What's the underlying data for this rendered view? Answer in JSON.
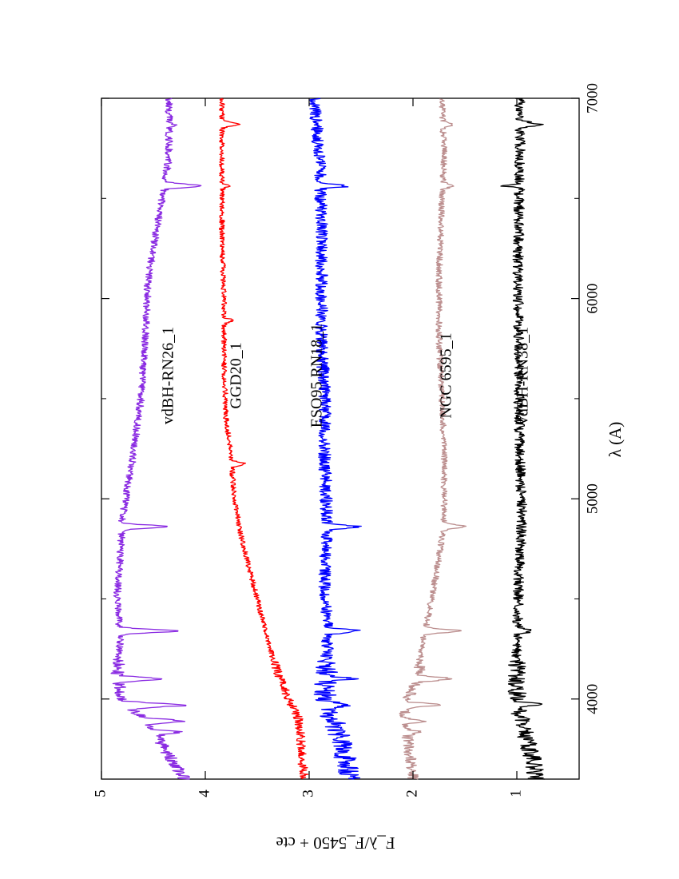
{
  "chart_data": {
    "type": "line",
    "title": "",
    "xlabel": "λ (A)",
    "ylabel": "F_λ/F_5450 + cte",
    "xlim": [
      3600,
      7000
    ],
    "ylim": [
      0.4,
      5
    ],
    "xticks": [
      {
        "value": 4000,
        "label": "4000"
      },
      {
        "value": 5000,
        "label": "5000"
      },
      {
        "value": 6000,
        "label": "6000"
      },
      {
        "value": 7000,
        "label": "7000"
      }
    ],
    "xminor": [
      4500,
      5500,
      6500
    ],
    "yticks": [
      {
        "value": 1,
        "label": "1"
      },
      {
        "value": 2,
        "label": "2"
      },
      {
        "value": 3,
        "label": "3"
      },
      {
        "value": 4,
        "label": "4"
      },
      {
        "value": 5,
        "label": "5"
      }
    ],
    "grid": false,
    "orientation": "rotated 90° (page landscape)",
    "series": [
      {
        "name": "vdBH-RN26_1",
        "color": "#8a2be2",
        "noise": 0.035,
        "x": [
          3600,
          3800,
          3900,
          4000,
          4100,
          4300,
          4500,
          4700,
          4900,
          5200,
          5500,
          5800,
          6100,
          6400,
          6700,
          7000
        ],
        "y": [
          4.2,
          4.45,
          4.6,
          4.8,
          4.85,
          4.82,
          4.85,
          4.82,
          4.8,
          4.7,
          4.62,
          4.58,
          4.55,
          4.45,
          4.35,
          4.35
        ],
        "absorptions": [
          [
            3835,
            0.25
          ],
          [
            3890,
            0.35
          ],
          [
            3970,
            0.55
          ],
          [
            4101,
            0.4
          ],
          [
            4340,
            0.55
          ],
          [
            4861,
            0.45
          ],
          [
            6563,
            0.35
          ],
          [
            6870,
            0.05
          ]
        ]
      },
      {
        "name": "GGD20_1",
        "color": "#ff0000",
        "noise": 0.025,
        "x": [
          3600,
          3800,
          3900,
          4000,
          4200,
          4400,
          4600,
          4800,
          5000,
          5200,
          5400,
          5700,
          6000,
          6300,
          6600,
          6900,
          7000
        ],
        "y": [
          3.05,
          3.08,
          3.1,
          3.2,
          3.35,
          3.45,
          3.55,
          3.65,
          3.72,
          3.75,
          3.8,
          3.82,
          3.82,
          3.84,
          3.84,
          3.84,
          3.84
        ],
        "absorptions": [
          [
            5175,
            0.12
          ],
          [
            5890,
            0.08
          ],
          [
            6563,
            0.06
          ],
          [
            6870,
            0.18
          ]
        ]
      },
      {
        "name": "ESO95 RN18_1",
        "color": "#0000ff",
        "noise": 0.06,
        "x": [
          3600,
          3800,
          4000,
          4300,
          4600,
          4900,
          5200,
          5500,
          5800,
          6100,
          6400,
          6700,
          7000
        ],
        "y": [
          2.6,
          2.7,
          2.85,
          2.82,
          2.85,
          2.83,
          2.85,
          2.85,
          2.88,
          2.88,
          2.88,
          2.9,
          2.95
        ],
        "absorptions": [
          [
            3970,
            0.2
          ],
          [
            4101,
            0.25
          ],
          [
            4340,
            0.3
          ],
          [
            4861,
            0.3
          ],
          [
            6563,
            0.25
          ]
        ]
      },
      {
        "name": "NGC 6595_1",
        "color": "#bc8f8f",
        "noise": 0.03,
        "x": [
          3600,
          3800,
          3900,
          4000,
          4100,
          4300,
          4500,
          4700,
          4900,
          5200,
          5500,
          5800,
          6100,
          6400,
          6700,
          7000
        ],
        "y": [
          2.0,
          2.05,
          2.1,
          2.05,
          1.95,
          1.9,
          1.82,
          1.75,
          1.7,
          1.7,
          1.72,
          1.75,
          1.75,
          1.73,
          1.7,
          1.72
        ],
        "absorptions": [
          [
            3835,
            0.15
          ],
          [
            3890,
            0.2
          ],
          [
            3970,
            0.3
          ],
          [
            4101,
            0.3
          ],
          [
            4340,
            0.35
          ],
          [
            4861,
            0.2
          ],
          [
            6563,
            0.1
          ],
          [
            6870,
            0.1
          ]
        ]
      },
      {
        "name": "vdBH-RN38_1",
        "color": "#000000",
        "noise": 0.05,
        "x": [
          3600,
          3800,
          4000,
          4300,
          4600,
          4900,
          5200,
          5500,
          5800,
          6100,
          6400,
          6700,
          7000
        ],
        "y": [
          0.8,
          0.9,
          1.0,
          1.0,
          0.98,
          0.95,
          0.97,
          0.98,
          0.98,
          0.99,
          0.98,
          0.97,
          0.97
        ],
        "absorptions": [
          [
            3970,
            0.2
          ],
          [
            4340,
            0.15
          ],
          [
            6870,
            0.2
          ]
        ],
        "emissions": [
          [
            6563,
            0.18
          ]
        ]
      }
    ]
  }
}
